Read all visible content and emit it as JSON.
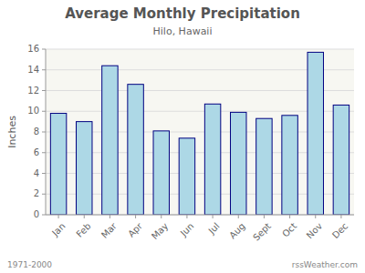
{
  "chart_data": {
    "type": "bar",
    "title": "Average Monthly Precipitation",
    "subtitle": "Hilo, Hawaii",
    "ylabel": "Inches",
    "annotations": [
      "1971-2000",
      "rssWeather.com"
    ],
    "categories": [
      "Jan",
      "Feb",
      "Mar",
      "Apr",
      "May",
      "Jun",
      "Jul",
      "Aug",
      "Sept",
      "Oct",
      "Nov",
      "Dec"
    ],
    "values": [
      9.8,
      9.0,
      14.4,
      12.6,
      8.1,
      7.4,
      10.7,
      9.9,
      9.3,
      9.6,
      15.7,
      10.6
    ],
    "color": "#ADD8E6",
    "ylim": [
      0,
      16
    ],
    "yticks": [
      0,
      2,
      4,
      6,
      8,
      10,
      12,
      14,
      16
    ],
    "grid": true
  }
}
